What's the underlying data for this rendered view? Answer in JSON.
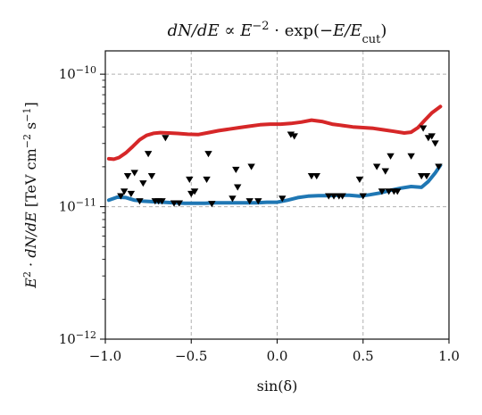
{
  "chart_data": {
    "type": "line",
    "title_parts": [
      {
        "text": "dN/dE ∝ E",
        "style": "italic"
      },
      {
        "text": "−2",
        "style": "sup"
      },
      {
        "text": " · exp(−",
        "style": "normal"
      },
      {
        "text": "E/E",
        "style": "italic"
      },
      {
        "text": "cut",
        "style": "sub"
      },
      {
        "text": ")",
        "style": "normal"
      }
    ],
    "xlabel": "sin(δ)",
    "ylabel_parts": [
      {
        "text": "E",
        "style": "italic"
      },
      {
        "text": "2",
        "style": "sup"
      },
      {
        "text": " · dN/dE",
        "style": "italic"
      },
      {
        "text": "  [TeV cm",
        "style": "normal"
      },
      {
        "text": "−2",
        "style": "sup"
      },
      {
        "text": " s",
        "style": "normal"
      },
      {
        "text": "−1",
        "style": "sup"
      },
      {
        "text": "]",
        "style": "normal"
      }
    ],
    "xlim": [
      -1.0,
      1.0
    ],
    "ylim": [
      1e-12,
      1.5e-10
    ],
    "yscale": "log",
    "grid": true,
    "grid_style": "dashed",
    "xticks": [
      -1.0,
      -0.5,
      0.0,
      0.5,
      1.0
    ],
    "xtick_labels": [
      "−1.0",
      "−0.5",
      "0.0",
      "0.5",
      "1.0"
    ],
    "yticks": [
      {
        "value": 1e-12,
        "base": "10",
        "exp": "−12"
      },
      {
        "value": 1e-11,
        "base": "10",
        "exp": "−11"
      },
      {
        "value": 1e-10,
        "base": "10",
        "exp": "−10"
      }
    ],
    "colors": {
      "blue": "#1f77b4",
      "red": "#d62728",
      "markers": "#000000",
      "grid": "#b0b0b0"
    },
    "series": [
      {
        "color": "#1f77b4",
        "x": [
          -0.98,
          -0.93,
          -0.88,
          -0.83,
          -0.78,
          -0.72,
          -0.66,
          -0.6,
          -0.54,
          -0.48,
          -0.42,
          -0.36,
          -0.3,
          -0.24,
          -0.18,
          -0.12,
          -0.06,
          0.0,
          0.06,
          0.12,
          0.18,
          0.24,
          0.3,
          0.36,
          0.42,
          0.48,
          0.54,
          0.6,
          0.66,
          0.72,
          0.78,
          0.84,
          0.88,
          0.92,
          0.95
        ],
        "y": [
          1.12e-11,
          1.18e-11,
          1.17e-11,
          1.12e-11,
          1.1e-11,
          1.09e-11,
          1.08e-11,
          1.07e-11,
          1.06e-11,
          1.06e-11,
          1.06e-11,
          1.07e-11,
          1.07e-11,
          1.07e-11,
          1.07e-11,
          1.07e-11,
          1.08e-11,
          1.08e-11,
          1.12e-11,
          1.17e-11,
          1.2e-11,
          1.21e-11,
          1.21e-11,
          1.22e-11,
          1.22e-11,
          1.2e-11,
          1.23e-11,
          1.27e-11,
          1.33e-11,
          1.38e-11,
          1.42e-11,
          1.4e-11,
          1.55e-11,
          1.8e-11,
          2.05e-11
        ]
      },
      {
        "color": "#d62728",
        "x": [
          -0.98,
          -0.95,
          -0.92,
          -0.88,
          -0.84,
          -0.8,
          -0.76,
          -0.72,
          -0.68,
          -0.63,
          -0.58,
          -0.52,
          -0.46,
          -0.4,
          -0.34,
          -0.28,
          -0.22,
          -0.16,
          -0.1,
          -0.04,
          0.02,
          0.08,
          0.14,
          0.2,
          0.26,
          0.32,
          0.38,
          0.44,
          0.5,
          0.56,
          0.62,
          0.68,
          0.74,
          0.78,
          0.82,
          0.86,
          0.9,
          0.95
        ],
        "y": [
          2.3e-11,
          2.28e-11,
          2.35e-11,
          2.55e-11,
          2.85e-11,
          3.2e-11,
          3.45e-11,
          3.58e-11,
          3.62e-11,
          3.6e-11,
          3.57e-11,
          3.52e-11,
          3.5e-11,
          3.62e-11,
          3.75e-11,
          3.85e-11,
          3.95e-11,
          4.05e-11,
          4.15e-11,
          4.2e-11,
          4.2e-11,
          4.25e-11,
          4.35e-11,
          4.5e-11,
          4.4e-11,
          4.2e-11,
          4.1e-11,
          4e-11,
          3.95e-11,
          3.9e-11,
          3.8e-11,
          3.7e-11,
          3.6e-11,
          3.65e-11,
          3.95e-11,
          4.5e-11,
          5.1e-11,
          5.7e-11
        ]
      }
    ],
    "upper_limits": {
      "marker": "down-triangle",
      "x": [
        -0.91,
        -0.89,
        -0.87,
        -0.85,
        -0.83,
        -0.8,
        -0.78,
        -0.75,
        -0.73,
        -0.71,
        -0.69,
        -0.67,
        -0.65,
        -0.6,
        -0.57,
        -0.51,
        -0.5,
        -0.48,
        -0.41,
        -0.4,
        -0.38,
        -0.26,
        -0.24,
        -0.23,
        -0.16,
        -0.15,
        -0.11,
        0.03,
        0.08,
        0.1,
        0.2,
        0.23,
        0.3,
        0.33,
        0.36,
        0.38,
        0.48,
        0.5,
        0.58,
        0.61,
        0.63,
        0.65,
        0.66,
        0.68,
        0.7,
        0.78,
        0.84,
        0.85,
        0.87,
        0.88,
        0.9,
        0.92,
        0.94
      ],
      "y": [
        1.2e-11,
        1.3e-11,
        1.7e-11,
        1.25e-11,
        1.8e-11,
        1.1e-11,
        1.5e-11,
        2.5e-11,
        1.7e-11,
        1.1e-11,
        1.1e-11,
        1.1e-11,
        3.3e-11,
        1.06e-11,
        1.06e-11,
        1.6e-11,
        1.25e-11,
        1.3e-11,
        1.6e-11,
        2.5e-11,
        1.05e-11,
        1.15e-11,
        1.9e-11,
        1.4e-11,
        1.1e-11,
        2e-11,
        1.1e-11,
        1.15e-11,
        3.5e-11,
        3.4e-11,
        1.7e-11,
        1.7e-11,
        1.2e-11,
        1.2e-11,
        1.2e-11,
        1.2e-11,
        1.6e-11,
        1.2e-11,
        2e-11,
        1.3e-11,
        1.85e-11,
        1.3e-11,
        2.4e-11,
        1.3e-11,
        1.3e-11,
        2.4e-11,
        1.7e-11,
        3.9e-11,
        1.7e-11,
        3.3e-11,
        3.4e-11,
        3e-11,
        2e-11
      ]
    }
  }
}
